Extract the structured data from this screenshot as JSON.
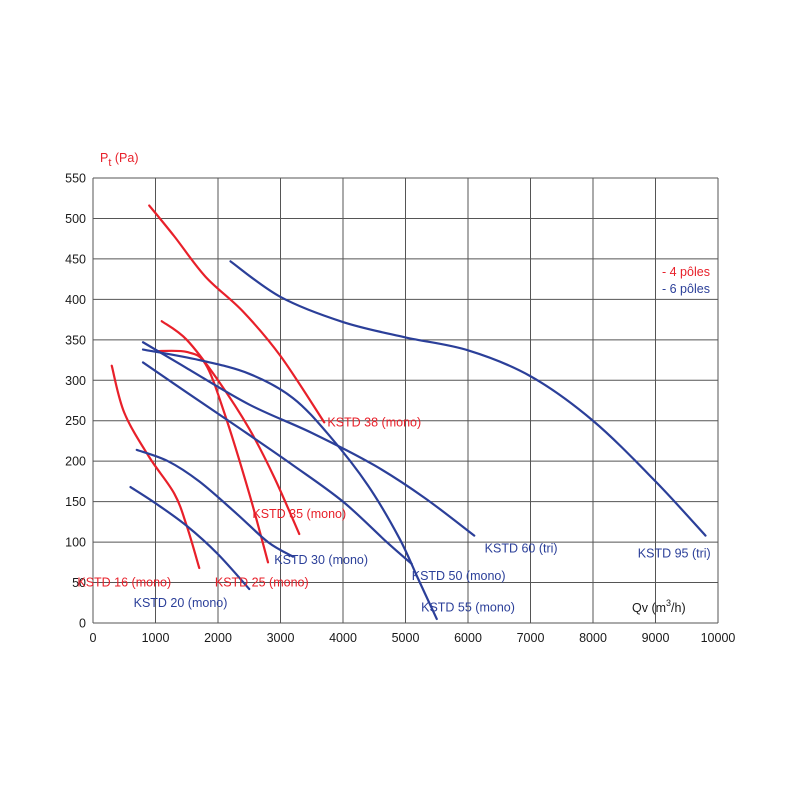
{
  "chart_data": {
    "type": "line",
    "ylabel": {
      "main": "P",
      "sub": "t",
      "unit": " (Pa)"
    },
    "xlabel": {
      "main": "Qv (m",
      "sup": "3",
      "tail": "/h)"
    },
    "xlim": [
      0,
      10000
    ],
    "ylim": [
      0,
      550
    ],
    "x_ticks": [
      0,
      1000,
      2000,
      3000,
      4000,
      5000,
      6000,
      7000,
      8000,
      9000,
      10000
    ],
    "y_ticks": [
      0,
      50,
      100,
      150,
      200,
      250,
      300,
      350,
      400,
      450,
      500,
      550
    ],
    "grid": true,
    "colors": {
      "four_pole": "#e8202a",
      "six_pole": "#2b3f99"
    },
    "legend": {
      "placement": "top-right",
      "entries": [
        {
          "label": "- 4 pôles",
          "color": "#e8202a"
        },
        {
          "label": "- 6 pôles",
          "color": "#2b3f99"
        }
      ]
    },
    "series": [
      {
        "name": "KSTD 16 (mono)",
        "color": "#e8202a",
        "points": [
          [
            300,
            318
          ],
          [
            500,
            260
          ],
          [
            900,
            205
          ],
          [
            1300,
            160
          ],
          [
            1500,
            120
          ],
          [
            1700,
            68
          ]
        ]
      },
      {
        "name": "KSTD 25 (mono)",
        "color": "#e8202a",
        "points": [
          [
            1000,
            336
          ],
          [
            1500,
            335
          ],
          [
            1800,
            320
          ],
          [
            2100,
            260
          ],
          [
            2500,
            160
          ],
          [
            2800,
            75
          ]
        ]
      },
      {
        "name": "KSTD 35 (mono)",
        "color": "#e8202a",
        "points": [
          [
            1100,
            373
          ],
          [
            1500,
            350
          ],
          [
            2000,
            300
          ],
          [
            2500,
            240
          ],
          [
            2900,
            180
          ],
          [
            3300,
            110
          ]
        ]
      },
      {
        "name": "KSTD 38 (mono)",
        "color": "#e8202a",
        "points": [
          [
            900,
            516
          ],
          [
            1300,
            478
          ],
          [
            1800,
            428
          ],
          [
            2400,
            385
          ],
          [
            3000,
            330
          ],
          [
            3700,
            248
          ]
        ]
      },
      {
        "name": "KSTD 20 (mono)",
        "color": "#2b3f99",
        "points": [
          [
            600,
            168
          ],
          [
            1000,
            148
          ],
          [
            1500,
            120
          ],
          [
            2000,
            85
          ],
          [
            2500,
            42
          ]
        ]
      },
      {
        "name": "KSTD 30 (mono)",
        "color": "#2b3f99",
        "points": [
          [
            700,
            214
          ],
          [
            1200,
            200
          ],
          [
            1700,
            175
          ],
          [
            2300,
            135
          ],
          [
            2800,
            100
          ],
          [
            3200,
            82
          ]
        ]
      },
      {
        "name": "KSTD 50 (mono)",
        "color": "#2b3f99",
        "points": [
          [
            800,
            322
          ],
          [
            1500,
            285
          ],
          [
            2300,
            243
          ],
          [
            3200,
            195
          ],
          [
            4000,
            150
          ],
          [
            4700,
            100
          ],
          [
            5100,
            73
          ]
        ]
      },
      {
        "name": "KSTD 55 (mono)",
        "color": "#2b3f99",
        "points": [
          [
            800,
            338
          ],
          [
            1700,
            325
          ],
          [
            2500,
            308
          ],
          [
            3200,
            278
          ],
          [
            3800,
            230
          ],
          [
            4400,
            170
          ],
          [
            4900,
            105
          ],
          [
            5200,
            55
          ],
          [
            5500,
            5
          ]
        ]
      },
      {
        "name": "KSTD 60 (tri)",
        "color": "#2b3f99",
        "points": [
          [
            800,
            347
          ],
          [
            1500,
            315
          ],
          [
            2500,
            270
          ],
          [
            3500,
            235
          ],
          [
            4500,
            195
          ],
          [
            5300,
            155
          ],
          [
            6100,
            108
          ]
        ]
      },
      {
        "name": "KSTD 95 (tri)",
        "color": "#2b3f99",
        "points": [
          [
            2200,
            447
          ],
          [
            3000,
            403
          ],
          [
            4000,
            372
          ],
          [
            5000,
            353
          ],
          [
            6000,
            337
          ],
          [
            7000,
            305
          ],
          [
            8000,
            250
          ],
          [
            9000,
            175
          ],
          [
            9800,
            108
          ]
        ]
      }
    ],
    "curve_labels": [
      {
        "text": "KSTD 16 (mono)",
        "color": "#e8202a",
        "x": 500,
        "y": 50
      },
      {
        "text": "KSTD 25 (mono)",
        "color": "#e8202a",
        "x": 2700,
        "y": 50
      },
      {
        "text": "KSTD 35 (mono)",
        "color": "#e8202a",
        "x": 3300,
        "y": 135
      },
      {
        "text": "KSTD 38 (mono)",
        "color": "#e8202a",
        "x": 4500,
        "y": 248
      },
      {
        "text": "KSTD 20 (mono)",
        "color": "#2b3f99",
        "x": 1400,
        "y": 25
      },
      {
        "text": "KSTD 30 (mono)",
        "color": "#2b3f99",
        "x": 3650,
        "y": 78
      },
      {
        "text": "KSTD 50 (mono)",
        "color": "#2b3f99",
        "x": 5850,
        "y": 58
      },
      {
        "text": "KSTD 55 (mono)",
        "color": "#2b3f99",
        "x": 6000,
        "y": 19
      },
      {
        "text": "KSTD 60 (tri)",
        "color": "#2b3f99",
        "x": 6850,
        "y": 92
      },
      {
        "text": "KSTD 95 (tri)",
        "color": "#2b3f99",
        "x": 9300,
        "y": 86
      }
    ]
  }
}
